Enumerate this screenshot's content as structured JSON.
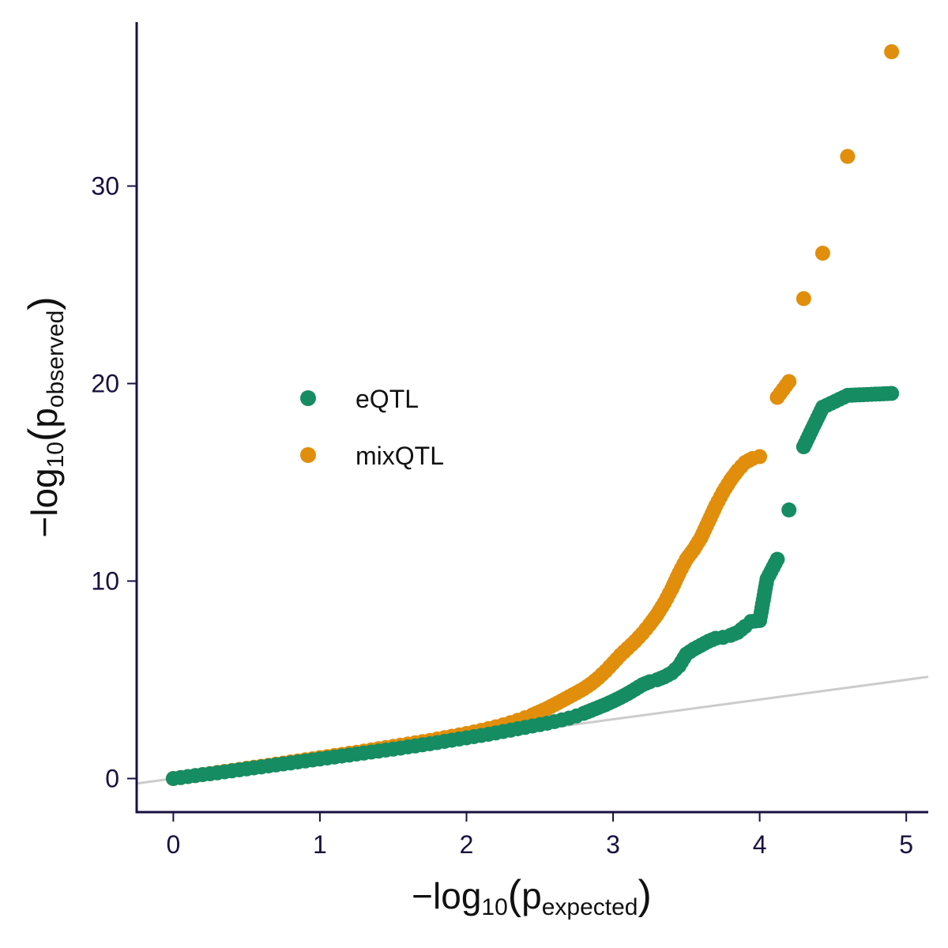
{
  "chart_data": {
    "type": "scatter",
    "xlabel": {
      "prefix": "−log",
      "sub10": "10",
      "base": "p",
      "sub": "expected"
    },
    "ylabel": {
      "prefix": "−log",
      "sub10": "10",
      "base": "p",
      "sub": "observed"
    },
    "xlim": [
      -0.25,
      5.15
    ],
    "ylim": [
      -1.7,
      38.3
    ],
    "x_ticks": [
      0,
      1,
      2,
      3,
      4,
      5
    ],
    "x_tick_labels": [
      "0",
      "1",
      "2",
      "3",
      "4",
      "5"
    ],
    "y_ticks": [
      0,
      10,
      20,
      30
    ],
    "y_tick_labels": [
      "0",
      "10",
      "20",
      "30"
    ],
    "grid": false,
    "legend_position": "center-left",
    "reference_line": {
      "slope": 1,
      "intercept": 0,
      "color": "#cccccc"
    },
    "colors": {
      "axis": "#1a1040",
      "eqtl": "#168c63",
      "mixqtl": "#e08e0b"
    },
    "series": [
      {
        "name": "eQTL",
        "color": "#168c63",
        "points": [
          [
            0.0,
            0.0
          ],
          [
            0.05,
            0.05
          ],
          [
            0.1,
            0.1
          ],
          [
            0.15,
            0.15
          ],
          [
            0.2,
            0.2
          ],
          [
            0.25,
            0.24
          ],
          [
            0.3,
            0.29
          ],
          [
            0.35,
            0.34
          ],
          [
            0.4,
            0.39
          ],
          [
            0.45,
            0.44
          ],
          [
            0.5,
            0.49
          ],
          [
            0.55,
            0.54
          ],
          [
            0.6,
            0.59
          ],
          [
            0.65,
            0.64
          ],
          [
            0.7,
            0.69
          ],
          [
            0.75,
            0.74
          ],
          [
            0.8,
            0.79
          ],
          [
            0.85,
            0.84
          ],
          [
            0.9,
            0.89
          ],
          [
            0.95,
            0.94
          ],
          [
            1.0,
            0.99
          ],
          [
            1.05,
            1.04
          ],
          [
            1.1,
            1.09
          ],
          [
            1.15,
            1.14
          ],
          [
            1.2,
            1.19
          ],
          [
            1.25,
            1.24
          ],
          [
            1.3,
            1.29
          ],
          [
            1.35,
            1.34
          ],
          [
            1.4,
            1.39
          ],
          [
            1.45,
            1.44
          ],
          [
            1.5,
            1.49
          ],
          [
            1.55,
            1.54
          ],
          [
            1.6,
            1.6
          ],
          [
            1.65,
            1.65
          ],
          [
            1.7,
            1.71
          ],
          [
            1.75,
            1.76
          ],
          [
            1.8,
            1.82
          ],
          [
            1.85,
            1.88
          ],
          [
            1.9,
            1.94
          ],
          [
            1.95,
            2.0
          ],
          [
            2.0,
            2.06
          ],
          [
            2.05,
            2.12
          ],
          [
            2.1,
            2.18
          ],
          [
            2.15,
            2.24
          ],
          [
            2.2,
            2.31
          ],
          [
            2.25,
            2.38
          ],
          [
            2.3,
            2.45
          ],
          [
            2.35,
            2.52
          ],
          [
            2.4,
            2.59
          ],
          [
            2.45,
            2.66
          ],
          [
            2.5,
            2.73
          ],
          [
            2.55,
            2.8
          ],
          [
            2.6,
            2.88
          ],
          [
            2.65,
            2.97
          ],
          [
            2.7,
            3.06
          ],
          [
            2.75,
            3.17
          ],
          [
            2.8,
            3.3
          ],
          [
            2.85,
            3.45
          ],
          [
            2.9,
            3.6
          ],
          [
            2.95,
            3.75
          ],
          [
            3.0,
            3.92
          ],
          [
            3.05,
            4.1
          ],
          [
            3.1,
            4.3
          ],
          [
            3.15,
            4.52
          ],
          [
            3.2,
            4.75
          ],
          [
            3.25,
            4.9
          ],
          [
            3.3,
            5.0
          ],
          [
            3.35,
            5.15
          ],
          [
            3.4,
            5.35
          ],
          [
            3.45,
            5.7
          ],
          [
            3.5,
            6.3
          ],
          [
            3.55,
            6.55
          ],
          [
            3.6,
            6.75
          ],
          [
            3.65,
            6.95
          ],
          [
            3.7,
            7.1
          ],
          [
            3.75,
            7.15
          ],
          [
            3.8,
            7.25
          ],
          [
            3.85,
            7.4
          ],
          [
            3.9,
            7.7
          ],
          [
            3.94,
            7.95
          ],
          [
            4.0,
            8.0
          ],
          [
            4.05,
            10.1
          ],
          [
            4.12,
            11.1
          ],
          [
            4.2,
            13.6
          ],
          [
            4.3,
            16.8
          ],
          [
            4.43,
            18.8
          ],
          [
            4.6,
            19.4
          ],
          [
            4.9,
            19.5
          ]
        ]
      },
      {
        "name": "mixQTL",
        "color": "#e08e0b",
        "points": [
          [
            0.0,
            0.0
          ],
          [
            0.05,
            0.05
          ],
          [
            0.1,
            0.1
          ],
          [
            0.15,
            0.15
          ],
          [
            0.2,
            0.2
          ],
          [
            0.25,
            0.25
          ],
          [
            0.3,
            0.31
          ],
          [
            0.35,
            0.36
          ],
          [
            0.4,
            0.41
          ],
          [
            0.45,
            0.46
          ],
          [
            0.5,
            0.52
          ],
          [
            0.55,
            0.57
          ],
          [
            0.6,
            0.62
          ],
          [
            0.65,
            0.67
          ],
          [
            0.7,
            0.73
          ],
          [
            0.75,
            0.78
          ],
          [
            0.8,
            0.84
          ],
          [
            0.85,
            0.89
          ],
          [
            0.9,
            0.95
          ],
          [
            0.95,
            1.0
          ],
          [
            1.0,
            1.06
          ],
          [
            1.05,
            1.11
          ],
          [
            1.1,
            1.17
          ],
          [
            1.15,
            1.22
          ],
          [
            1.2,
            1.28
          ],
          [
            1.25,
            1.33
          ],
          [
            1.3,
            1.39
          ],
          [
            1.35,
            1.45
          ],
          [
            1.4,
            1.51
          ],
          [
            1.45,
            1.57
          ],
          [
            1.5,
            1.63
          ],
          [
            1.55,
            1.69
          ],
          [
            1.6,
            1.75
          ],
          [
            1.65,
            1.81
          ],
          [
            1.7,
            1.87
          ],
          [
            1.75,
            1.93
          ],
          [
            1.8,
            2.0
          ],
          [
            1.85,
            2.07
          ],
          [
            1.9,
            2.14
          ],
          [
            1.95,
            2.21
          ],
          [
            2.0,
            2.28
          ],
          [
            2.05,
            2.36
          ],
          [
            2.1,
            2.44
          ],
          [
            2.15,
            2.53
          ],
          [
            2.2,
            2.62
          ],
          [
            2.25,
            2.72
          ],
          [
            2.3,
            2.83
          ],
          [
            2.35,
            2.95
          ],
          [
            2.4,
            3.08
          ],
          [
            2.45,
            3.22
          ],
          [
            2.5,
            3.38
          ],
          [
            2.55,
            3.55
          ],
          [
            2.6,
            3.74
          ],
          [
            2.65,
            3.94
          ],
          [
            2.7,
            4.14
          ],
          [
            2.75,
            4.34
          ],
          [
            2.8,
            4.55
          ],
          [
            2.85,
            4.8
          ],
          [
            2.9,
            5.1
          ],
          [
            2.95,
            5.45
          ],
          [
            3.0,
            5.85
          ],
          [
            3.05,
            6.25
          ],
          [
            3.1,
            6.6
          ],
          [
            3.15,
            6.95
          ],
          [
            3.2,
            7.35
          ],
          [
            3.25,
            7.8
          ],
          [
            3.3,
            8.3
          ],
          [
            3.35,
            8.9
          ],
          [
            3.4,
            9.6
          ],
          [
            3.45,
            10.4
          ],
          [
            3.5,
            11.1
          ],
          [
            3.55,
            11.6
          ],
          [
            3.6,
            12.2
          ],
          [
            3.65,
            13.0
          ],
          [
            3.7,
            13.8
          ],
          [
            3.75,
            14.5
          ],
          [
            3.8,
            15.1
          ],
          [
            3.85,
            15.6
          ],
          [
            3.9,
            16.0
          ],
          [
            3.95,
            16.2
          ],
          [
            4.0,
            16.3
          ],
          [
            4.12,
            19.3
          ],
          [
            4.2,
            20.1
          ],
          [
            4.3,
            24.3
          ],
          [
            4.43,
            26.6
          ],
          [
            4.6,
            31.5
          ],
          [
            4.9,
            36.8
          ]
        ]
      }
    ]
  }
}
